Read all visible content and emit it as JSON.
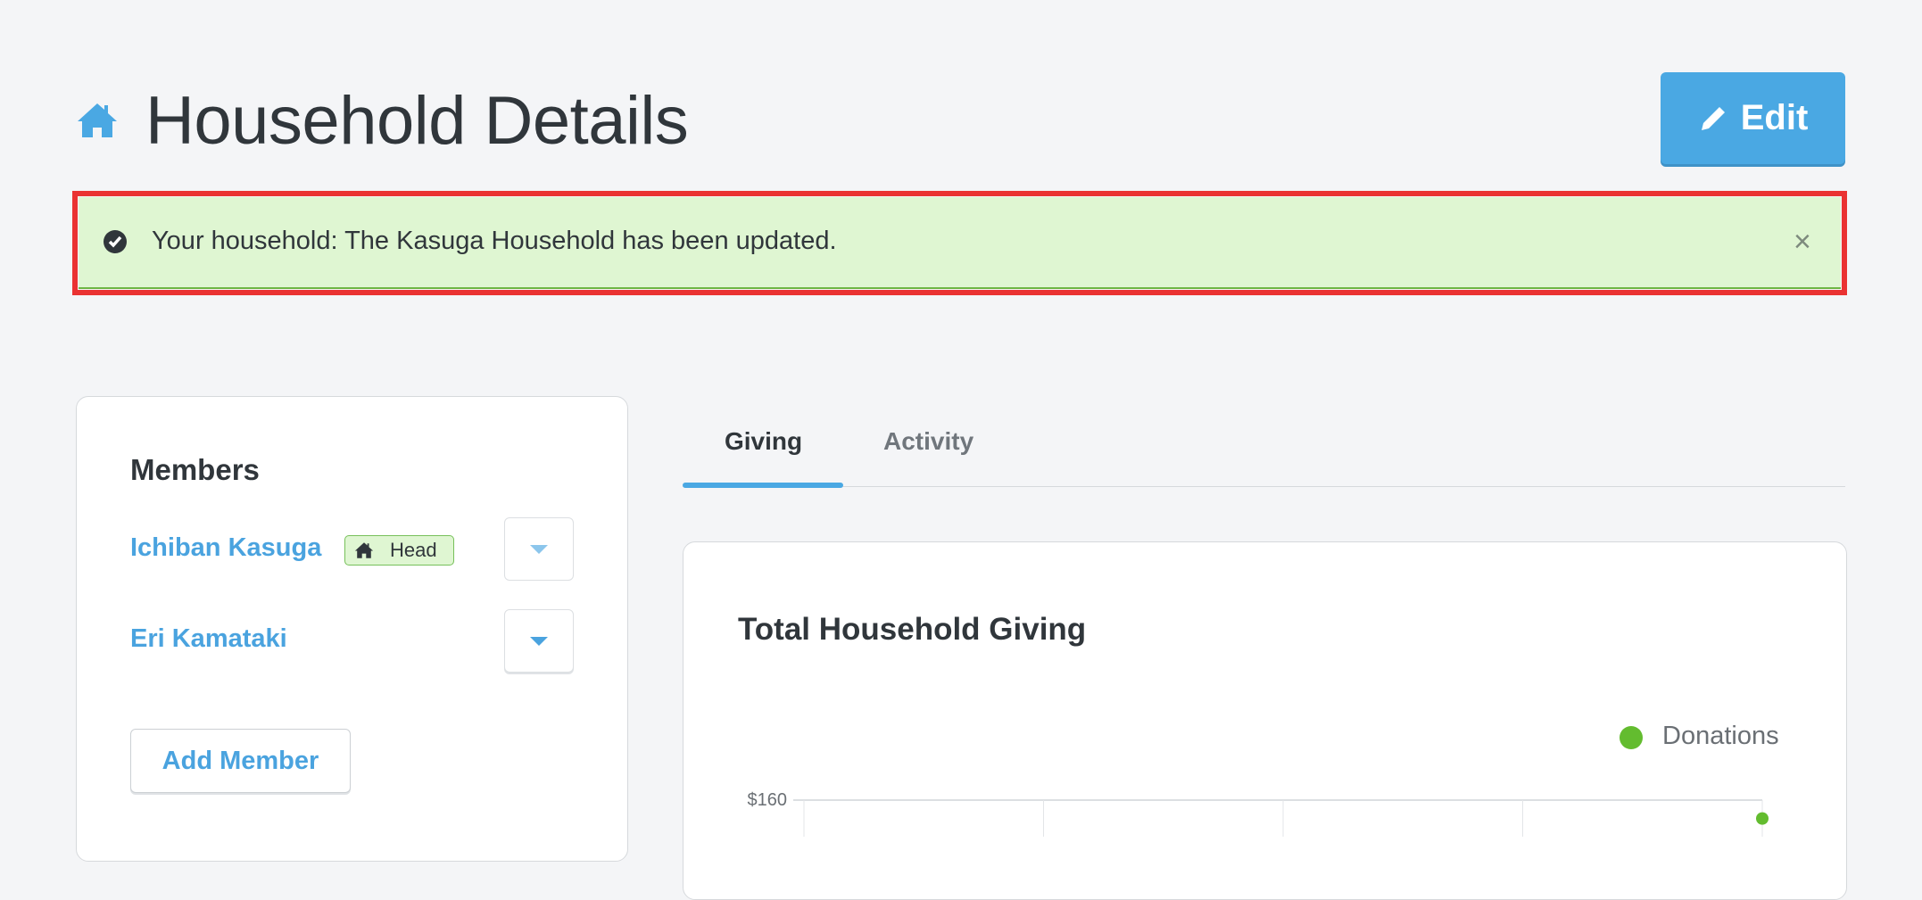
{
  "header": {
    "title": "Household Details",
    "title_icon": "home-icon",
    "edit_label": "Edit",
    "edit_icon": "pencil-icon"
  },
  "alert": {
    "message": "Your household: The Kasuga Household has been updated.",
    "icon": "check-circle-icon",
    "close": "×",
    "status_color": "#dff6d2"
  },
  "members": {
    "title": "Members",
    "items": [
      {
        "name": "Ichiban Kasuga",
        "badge": "Head",
        "badge_icon": "home-icon"
      },
      {
        "name": "Eri Kamataki"
      }
    ],
    "add_label": "Add Member"
  },
  "tabs": [
    {
      "label": "Giving",
      "active": true
    },
    {
      "label": "Activity",
      "active": false
    }
  ],
  "colors": {
    "accent": "#4aa8e3",
    "donations": "#63bc2f"
  },
  "chart_data": {
    "type": "line",
    "title": "Total Household Giving",
    "legend": [
      "Donations"
    ],
    "legend_position": "top-right",
    "y_tick_labels": [
      "$160"
    ],
    "grid": true,
    "series": [
      {
        "name": "Donations",
        "values": [
          150
        ]
      }
    ]
  }
}
